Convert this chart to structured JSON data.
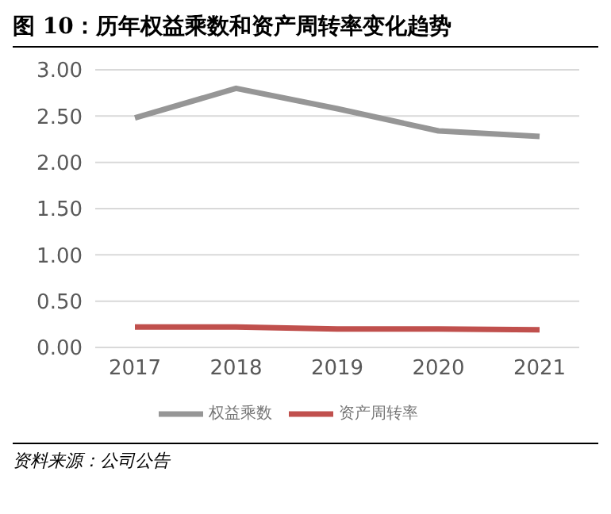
{
  "chart_data": {
    "type": "line",
    "title": "图 10：历年权益乘数和资产周转率变化趋势",
    "categories": [
      "2017",
      "2018",
      "2019",
      "2020",
      "2021"
    ],
    "series": [
      {
        "name": "权益乘数",
        "color": "#969696",
        "values": [
          2.48,
          2.8,
          2.58,
          2.34,
          2.28
        ]
      },
      {
        "name": "资产周转率",
        "color": "#c0504d",
        "values": [
          0.22,
          0.22,
          0.2,
          0.2,
          0.19
        ]
      }
    ],
    "ylim": [
      0,
      3
    ],
    "yticks": [
      {
        "value": 0,
        "label": "0.00"
      },
      {
        "value": 0.5,
        "label": "0.50"
      },
      {
        "value": 1,
        "label": "1.00"
      },
      {
        "value": 1.5,
        "label": "1.50"
      },
      {
        "value": 2,
        "label": "2.00"
      },
      {
        "value": 2.5,
        "label": "2.50"
      },
      {
        "value": 3,
        "label": "3.00"
      }
    ],
    "grid": "y",
    "legend": "bottom",
    "marker": "none",
    "line_style": "solid",
    "annotations": [
      "资料来源：公司公告"
    ]
  }
}
